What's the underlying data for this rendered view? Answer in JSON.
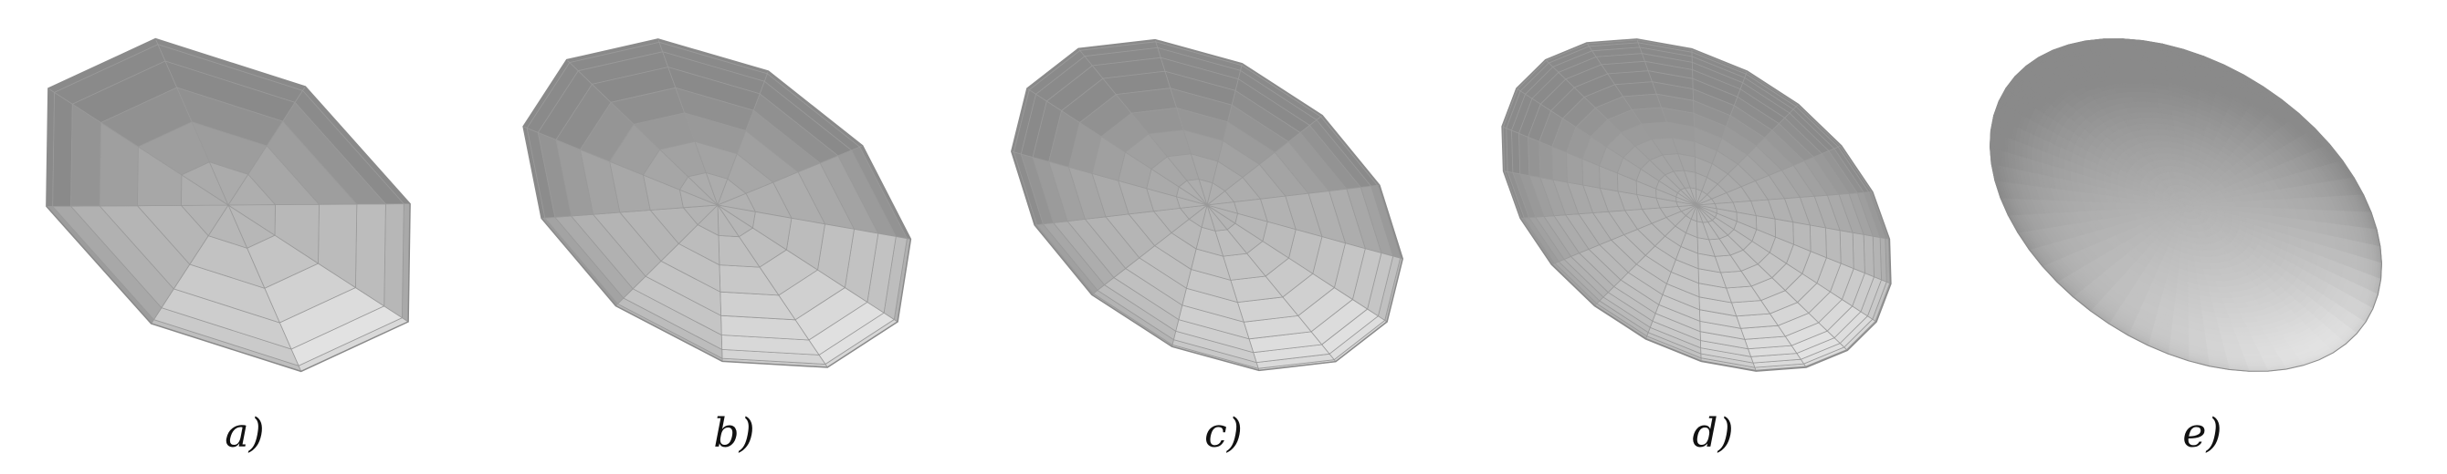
{
  "figure": {
    "panels": [
      {
        "label": "a)",
        "mesh_rings": 6,
        "mesh_segments": 8,
        "mesh_style": "coarse"
      },
      {
        "label": "b)",
        "mesh_rings": 8,
        "mesh_segments": 11,
        "mesh_style": "medium"
      },
      {
        "label": "c)",
        "mesh_rings": 10,
        "mesh_segments": 14,
        "mesh_style": "medium-fine"
      },
      {
        "label": "d)",
        "mesh_rings": 15,
        "mesh_segments": 22,
        "mesh_style": "fine"
      },
      {
        "label": "e)",
        "mesh_rings": 40,
        "mesh_segments": 60,
        "mesh_style": "smooth"
      }
    ],
    "colors": {
      "shade_dark": "#8a8a8a",
      "shade_light": "#e2e2e2",
      "edge": "#9a9a9a",
      "caption": "#111111"
    }
  }
}
